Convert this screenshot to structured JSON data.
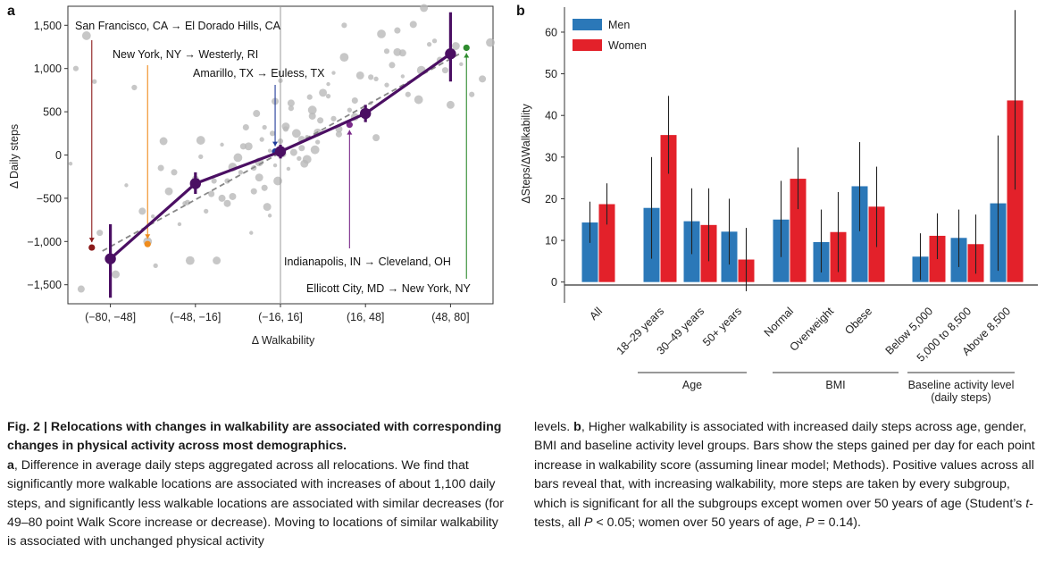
{
  "chart_data": [
    {
      "panel": "a",
      "type": "scatter",
      "xlabel": "Δ Walkability",
      "ylabel": "Δ Daily steps",
      "x_categories": [
        "(−80, −48]",
        "(−48, −16]",
        "(−16, 16]",
        "(16, 48]",
        "(48, 80]"
      ],
      "xlim": [
        -80,
        80
      ],
      "ylim": [
        -1720,
        1720
      ],
      "y_ticks": [
        -1500,
        -1000,
        -500,
        0,
        500,
        1000,
        1500
      ],
      "y_tick_labels": [
        "−1,500",
        "−1,000",
        "−500",
        "0",
        "500",
        "1,000",
        "1,500"
      ],
      "grid": false,
      "binned_means": {
        "x": [
          -64,
          -32,
          0,
          32,
          64
        ],
        "y": [
          -1200,
          -330,
          40,
          480,
          1170
        ],
        "ci_low": [
          -1650,
          -450,
          -40,
          380,
          850
        ],
        "ci_high": [
          -800,
          -200,
          120,
          580,
          1650
        ]
      },
      "trend_line": {
        "x": [
          -67,
          68
        ],
        "y": [
          -1110,
          1180
        ]
      },
      "annotations": [
        {
          "label": "San Francisco, CA → El Dorado Hills, CA",
          "x": -71,
          "y": -1070,
          "color": "#8b1a1a"
        },
        {
          "label": "New York, NY → Westerly, RI",
          "x": -50,
          "y": -1030,
          "color": "#f08c1c"
        },
        {
          "label": "Amarillo, TX → Euless, TX",
          "x": -2,
          "y": 40,
          "color": "#1f3a9a"
        },
        {
          "label": "Indianapolis, IN → Cleveland, OH",
          "x": 26,
          "y": 350,
          "color": "#7a2a8a"
        },
        {
          "label": "Ellicott City, MD → New York, NY",
          "x": 70,
          "y": 1240,
          "color": "#2e8b2e"
        }
      ],
      "background_points": {
        "x": [
          -79,
          -77,
          -75,
          -73,
          -70,
          -68,
          -62,
          -58,
          -55,
          -52,
          -50,
          -47,
          -45,
          -42,
          -38,
          -35,
          -32,
          -30,
          -28,
          -26,
          -24,
          -22,
          -20,
          -18,
          -16,
          -15,
          -13,
          -12,
          -11,
          -10,
          -9,
          -8,
          -7,
          -6,
          -5,
          -4,
          -3,
          -2,
          -1,
          0,
          1,
          2,
          3,
          4,
          5,
          6,
          7,
          8,
          9,
          10,
          11,
          12,
          13,
          14,
          15,
          16,
          18,
          20,
          22,
          24,
          26,
          28,
          30,
          32,
          34,
          36,
          38,
          40,
          42,
          44,
          46,
          48,
          50,
          53,
          56,
          60,
          64,
          68,
          72,
          76,
          79,
          -36,
          -40,
          -44,
          -48,
          -25,
          -22,
          -18,
          -30,
          -14,
          -8,
          -4,
          2,
          8,
          12,
          18,
          22,
          28,
          34,
          40,
          46,
          52,
          58,
          62,
          66,
          -2,
          0,
          4,
          10,
          -6,
          -10,
          14,
          20,
          24,
          -20,
          -34,
          36,
          44,
          54
        ],
        "y": [
          -100,
          1000,
          -1550,
          1380,
          850,
          -900,
          -1380,
          -350,
          780,
          -650,
          -1000,
          -1280,
          -150,
          -420,
          -800,
          -550,
          -280,
          170,
          -650,
          -450,
          -1220,
          120,
          -300,
          -480,
          -30,
          -200,
          320,
          100,
          -900,
          -150,
          480,
          -80,
          180,
          -380,
          -600,
          -700,
          250,
          620,
          -300,
          860,
          10,
          330,
          -160,
          540,
          30,
          250,
          -40,
          80,
          -100,
          210,
          670,
          450,
          60,
          150,
          400,
          720,
          820,
          420,
          300,
          1130,
          520,
          630,
          920,
          520,
          900,
          200,
          1400,
          810,
          1040,
          1190,
          910,
          700,
          1510,
          980,
          1280,
          1100,
          580,
          1050,
          700,
          880,
          1300,
          -560,
          -200,
          160,
          -710,
          -300,
          -500,
          -140,
          -20,
          100,
          -260,
          50,
          300,
          180,
          520,
          680,
          240,
          440,
          600,
          1200,
          1180,
          640,
          1320,
          980,
          1260,
          -120,
          160,
          600,
          -50,
          320,
          -420,
          260,
          950,
          1500,
          -560,
          -1220,
          880,
          1440,
          1700
        ]
      }
    },
    {
      "panel": "b",
      "type": "bar",
      "ylabel": "ΔSteps/ΔWalkability",
      "ylim": [
        -5,
        66
      ],
      "y_ticks": [
        0,
        10,
        20,
        30,
        40,
        50,
        60
      ],
      "grid": false,
      "legend_position": "top-left",
      "categories": [
        "All",
        "18–29 years",
        "30–49 years",
        "50+ years",
        "Normal",
        "Overweight",
        "Obese",
        "Below 5,000",
        "5,000 to 8,500",
        "Above 8,500"
      ],
      "groups": [
        {
          "label": "Age",
          "categories": [
            "18–29 years",
            "30–49 years",
            "50+ years"
          ]
        },
        {
          "label": "BMI",
          "categories": [
            "Normal",
            "Overweight",
            "Obese"
          ]
        },
        {
          "label": "Baseline activity level\n(daily steps)",
          "categories": [
            "Below 5,000",
            "5,000 to 8,500",
            "Above 8,500"
          ]
        }
      ],
      "series": [
        {
          "name": "Men",
          "color": "#2b78b8",
          "values": [
            14.3,
            17.8,
            14.6,
            12.1,
            15.0,
            9.6,
            23.0,
            6.1,
            10.6,
            18.9
          ],
          "ci_low": [
            9.4,
            5.6,
            6.7,
            4.2,
            6.0,
            2.3,
            12.2,
            0.5,
            3.6,
            2.7
          ],
          "ci_high": [
            19.3,
            30.0,
            22.5,
            20.0,
            24.3,
            17.4,
            33.6,
            11.7,
            17.4,
            35.2
          ]
        },
        {
          "name": "Women",
          "color": "#e3212a",
          "values": [
            18.7,
            35.3,
            13.7,
            5.4,
            24.8,
            12.0,
            18.1,
            11.1,
            9.1,
            43.6
          ],
          "ci_low": [
            13.8,
            26.0,
            5.0,
            -2.2,
            17.5,
            2.4,
            8.4,
            5.5,
            2.0,
            22.2
          ],
          "ci_high": [
            23.7,
            44.7,
            22.5,
            13.0,
            32.3,
            21.6,
            27.7,
            16.5,
            16.2,
            65.3
          ]
        }
      ]
    }
  ],
  "panel_labels": {
    "a": "a",
    "b": "b"
  },
  "caption": {
    "fig_label": "Fig. 2 | ",
    "title": "Relocations with changes in walkability are associated with corresponding changes in physical activity across most demographics.",
    "panel_a_label": "a",
    "panel_a_text": ", Difference in average daily steps aggregated across all relocations. We find that significantly more walkable locations are associated with increases of about 1,100 daily steps, and significantly less walkable locations are associated with similar decreases (for 49–80 point Walk Score increase or decrease). Moving to locations of similar walkability is associated with unchanged physical activity",
    "right_intro": "levels. ",
    "panel_b_label": "b",
    "panel_b_text_1": ", Higher walkability is associated with increased daily steps across age, gender, BMI and baseline activity level groups. Bars show the steps gained per day for each point increase in walkability score (assuming linear model; Methods). Positive values across all bars reveal that, with increasing walkability, more steps are taken by every subgroup, which is significant for all the subgroups except women over 50 years of age (Student’s ",
    "panel_b_t": "t",
    "panel_b_text_2": "-tests, all ",
    "panel_b_p1": "P",
    "panel_b_text_3": " < 0.05; women over 50 years of age, ",
    "panel_b_p2": "P",
    "panel_b_text_4": " = 0.14)."
  }
}
